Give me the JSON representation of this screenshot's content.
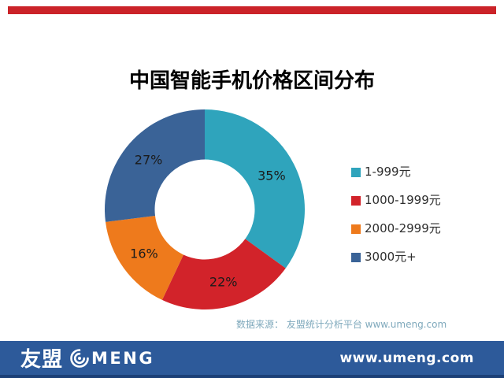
{
  "page": {
    "background": "#ffffff",
    "top_bar_color": "#cb2329"
  },
  "chart_data": {
    "type": "pie",
    "subtype": "donut",
    "title": "中国智能手机价格区间分布",
    "categories": [
      "1-999元",
      "1000-1999元",
      "2000-2999元",
      "3000元+"
    ],
    "values": [
      35,
      22,
      16,
      27
    ],
    "labels": [
      "35%",
      "22%",
      "16%",
      "27%"
    ],
    "colors": [
      "#2fa4bc",
      "#d2232a",
      "#ee7a1c",
      "#3a6397"
    ],
    "legend_position": "right",
    "start_angle": "12-oclock",
    "direction": "clockwise",
    "donut_hole_ratio": 0.5
  },
  "source_note": "数据来源： 友盟统计分析平台 www.umeng.com",
  "footer": {
    "logo_cn": "友盟",
    "logo_en": "MENG",
    "url": "www.umeng.com",
    "bg_color": "#2d5a9a",
    "edge_color": "#1c4077"
  }
}
